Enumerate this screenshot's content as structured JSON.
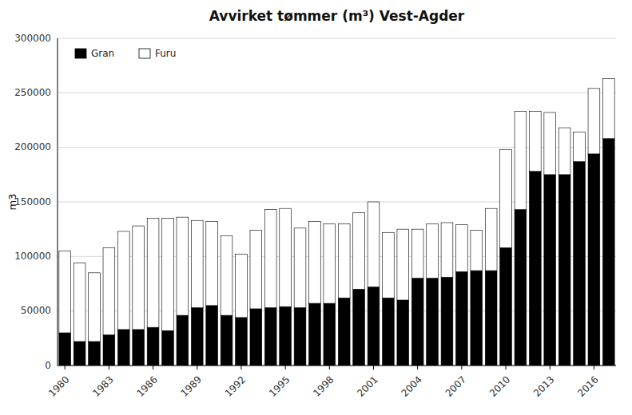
{
  "chart_data": {
    "type": "bar",
    "stacked": true,
    "title": "Avvirket tømmer (m³) Vest-Agder",
    "ylabel": "m3",
    "categories": [
      "1980",
      null,
      null,
      "1983",
      null,
      null,
      "1986",
      null,
      null,
      "1989",
      null,
      null,
      "1992",
      null,
      null,
      "1995",
      null,
      null,
      "1998",
      null,
      null,
      "2001",
      null,
      null,
      "2004",
      null,
      null,
      "2007",
      null,
      null,
      "2010",
      null,
      null,
      "2013",
      null,
      null,
      "2016",
      null
    ],
    "series": [
      {
        "name": "Gran",
        "color": "#000000",
        "values": [
          30000,
          22000,
          22000,
          28000,
          33000,
          33000,
          35000,
          32000,
          46000,
          53000,
          55000,
          46000,
          44000,
          52000,
          53000,
          54000,
          53000,
          57000,
          57000,
          62000,
          70000,
          72000,
          62000,
          60000,
          80000,
          80000,
          81000,
          86000,
          87000,
          87000,
          108000,
          143000,
          178000,
          175000,
          175000,
          187000,
          194000,
          208000
        ]
      },
      {
        "name": "Furu",
        "color": "#ffffff",
        "values": [
          75000,
          72000,
          63000,
          80000,
          90000,
          95000,
          100000,
          103000,
          90000,
          80000,
          77000,
          73000,
          58000,
          72000,
          90000,
          90000,
          73000,
          75000,
          73000,
          68000,
          70000,
          78000,
          60000,
          65000,
          45000,
          50000,
          50000,
          43000,
          37000,
          57000,
          90000,
          90000,
          55000,
          57000,
          43000,
          27000,
          60000,
          55000
        ]
      }
    ],
    "ylim": [
      0,
      300000
    ],
    "yticks": [
      0,
      50000,
      100000,
      150000,
      200000,
      250000,
      300000
    ],
    "grid": true,
    "legend": "upper left"
  }
}
